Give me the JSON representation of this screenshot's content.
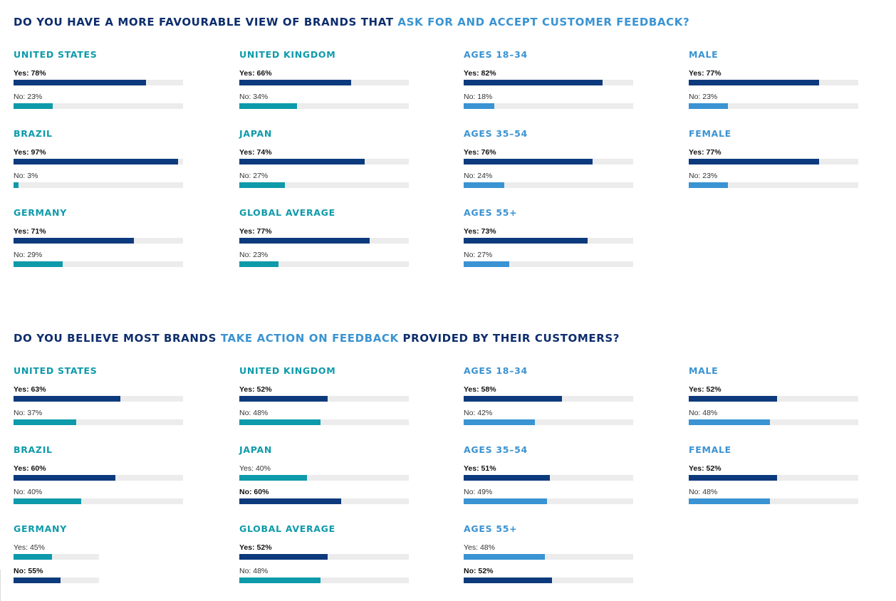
{
  "colors": {
    "title": "#0d2d6c",
    "highlight": "#3a93d2",
    "yes": "#0d3a7c",
    "teal": "#0d9aaa",
    "lightblue": "#3a93d2",
    "track": "#ececec"
  },
  "chart_data": [
    {
      "type": "bar",
      "title_parts": [
        {
          "text": "DO YOU HAVE A MORE FAVOURABLE VIEW OF BRANDS THAT ",
          "highlight": false
        },
        {
          "text": "ASK FOR AND ACCEPT CUSTOMER FEEDBACK?",
          "highlight": true
        }
      ],
      "groups": [
        {
          "title": "UNITED STATES",
          "palette": "teal",
          "rows": [
            {
              "label": "Yes: 78%",
              "value": 78,
              "bold": true,
              "color": "yes"
            },
            {
              "label": "No: 23%",
              "value": 23,
              "bold": false,
              "color": "teal"
            }
          ]
        },
        {
          "title": "UNITED KINGDOM",
          "palette": "teal",
          "rows": [
            {
              "label": "Yes: 66%",
              "value": 66,
              "bold": true,
              "color": "yes"
            },
            {
              "label": "No: 34%",
              "value": 34,
              "bold": false,
              "color": "teal"
            }
          ]
        },
        {
          "title": "AGES 18–34",
          "palette": "lightblue",
          "rows": [
            {
              "label": "Yes: 82%",
              "value": 82,
              "bold": true,
              "color": "yes"
            },
            {
              "label": "No: 18%",
              "value": 18,
              "bold": false,
              "color": "lightblue"
            }
          ]
        },
        {
          "title": "MALE",
          "palette": "lightblue",
          "rows": [
            {
              "label": "Yes: 77%",
              "value": 77,
              "bold": true,
              "color": "yes"
            },
            {
              "label": "No: 23%",
              "value": 23,
              "bold": false,
              "color": "lightblue"
            }
          ]
        },
        {
          "title": "BRAZIL",
          "palette": "teal",
          "rows": [
            {
              "label": "Yes: 97%",
              "value": 97,
              "bold": true,
              "color": "yes"
            },
            {
              "label": "No: 3%",
              "value": 3,
              "bold": false,
              "color": "teal"
            }
          ]
        },
        {
          "title": "JAPAN",
          "palette": "teal",
          "rows": [
            {
              "label": "Yes: 74%",
              "value": 74,
              "bold": true,
              "color": "yes"
            },
            {
              "label": "No: 27%",
              "value": 27,
              "bold": false,
              "color": "teal"
            }
          ]
        },
        {
          "title": "AGES 35–54",
          "palette": "lightblue",
          "rows": [
            {
              "label": "Yes: 76%",
              "value": 76,
              "bold": true,
              "color": "yes"
            },
            {
              "label": "No: 24%",
              "value": 24,
              "bold": false,
              "color": "lightblue"
            }
          ]
        },
        {
          "title": "FEMALE",
          "palette": "lightblue",
          "rows": [
            {
              "label": "Yes: 77%",
              "value": 77,
              "bold": true,
              "color": "yes"
            },
            {
              "label": "No: 23%",
              "value": 23,
              "bold": false,
              "color": "lightblue"
            }
          ]
        },
        {
          "title": "GERMANY",
          "palette": "teal",
          "rows": [
            {
              "label": "Yes: 71%",
              "value": 71,
              "bold": true,
              "color": "yes"
            },
            {
              "label": "No: 29%",
              "value": 29,
              "bold": false,
              "color": "teal"
            }
          ]
        },
        {
          "title": "GLOBAL AVERAGE",
          "palette": "teal",
          "rows": [
            {
              "label": "Yes: 77%",
              "value": 77,
              "bold": true,
              "color": "yes"
            },
            {
              "label": "No: 23%",
              "value": 23,
              "bold": false,
              "color": "teal"
            }
          ]
        },
        {
          "title": "AGES 55+",
          "palette": "lightblue",
          "rows": [
            {
              "label": "Yes: 73%",
              "value": 73,
              "bold": true,
              "color": "yes"
            },
            {
              "label": "No: 27%",
              "value": 27,
              "bold": false,
              "color": "lightblue"
            }
          ]
        }
      ]
    },
    {
      "type": "bar",
      "title_parts": [
        {
          "text": "DO YOU BELIEVE MOST BRANDS ",
          "highlight": false
        },
        {
          "text": "TAKE ACTION ON FEEDBACK",
          "highlight": true
        },
        {
          "text": " PROVIDED BY THEIR CUSTOMERS?",
          "highlight": false
        }
      ],
      "groups": [
        {
          "title": "UNITED STATES",
          "palette": "teal",
          "rows": [
            {
              "label": "Yes: 63%",
              "value": 63,
              "bold": true,
              "color": "yes"
            },
            {
              "label": "No: 37%",
              "value": 37,
              "bold": false,
              "color": "teal"
            }
          ]
        },
        {
          "title": "UNITED KINGDOM",
          "palette": "teal",
          "rows": [
            {
              "label": "Yes: 52%",
              "value": 52,
              "bold": true,
              "color": "yes"
            },
            {
              "label": "No: 48%",
              "value": 48,
              "bold": false,
              "color": "teal"
            }
          ]
        },
        {
          "title": "AGES 18–34",
          "palette": "lightblue",
          "rows": [
            {
              "label": "Yes: 58%",
              "value": 58,
              "bold": true,
              "color": "yes"
            },
            {
              "label": "No: 42%",
              "value": 42,
              "bold": false,
              "color": "lightblue"
            }
          ]
        },
        {
          "title": "MALE",
          "palette": "lightblue",
          "rows": [
            {
              "label": "Yes: 52%",
              "value": 52,
              "bold": true,
              "color": "yes"
            },
            {
              "label": "No: 48%",
              "value": 48,
              "bold": false,
              "color": "lightblue"
            }
          ]
        },
        {
          "title": "BRAZIL",
          "palette": "teal",
          "rows": [
            {
              "label": "Yes: 60%",
              "value": 60,
              "bold": true,
              "color": "yes"
            },
            {
              "label": "No: 40%",
              "value": 40,
              "bold": false,
              "color": "teal"
            }
          ]
        },
        {
          "title": "JAPAN",
          "palette": "teal",
          "rows": [
            {
              "label": "Yes: 40%",
              "value": 40,
              "bold": false,
              "color": "teal"
            },
            {
              "label": "No: 60%",
              "value": 60,
              "bold": true,
              "color": "yes"
            }
          ]
        },
        {
          "title": "AGES 35–54",
          "palette": "lightblue",
          "rows": [
            {
              "label": "Yes: 51%",
              "value": 51,
              "bold": true,
              "color": "yes"
            },
            {
              "label": "No: 49%",
              "value": 49,
              "bold": false,
              "color": "lightblue"
            }
          ]
        },
        {
          "title": "FEMALE",
          "palette": "lightblue",
          "rows": [
            {
              "label": "Yes: 52%",
              "value": 52,
              "bold": true,
              "color": "yes"
            },
            {
              "label": "No: 48%",
              "value": 48,
              "bold": false,
              "color": "lightblue"
            }
          ]
        },
        {
          "title": "GERMANY",
          "palette": "teal",
          "narrow": true,
          "rows": [
            {
              "label": "Yes: 45%",
              "value": 45,
              "bold": false,
              "color": "teal"
            },
            {
              "label": "No: 55%",
              "value": 55,
              "bold": true,
              "color": "yes"
            }
          ]
        },
        {
          "title": "GLOBAL AVERAGE",
          "palette": "teal",
          "rows": [
            {
              "label": "Yes: 52%",
              "value": 52,
              "bold": true,
              "color": "yes"
            },
            {
              "label": "No: 48%",
              "value": 48,
              "bold": false,
              "color": "teal"
            }
          ]
        },
        {
          "title": "AGES 55+",
          "palette": "lightblue",
          "rows": [
            {
              "label": "Yes: 48%",
              "value": 48,
              "bold": false,
              "color": "lightblue"
            },
            {
              "label": "No: 52%",
              "value": 52,
              "bold": true,
              "color": "yes"
            }
          ]
        }
      ]
    }
  ]
}
